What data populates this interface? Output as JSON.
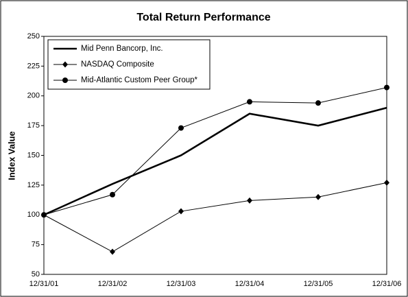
{
  "chart_data": {
    "type": "line",
    "title": "Total Return Performance",
    "y_label": "Index Value",
    "categories": [
      "12/31/01",
      "12/31/02",
      "12/31/03",
      "12/31/04",
      "12/31/05",
      "12/31/06"
    ],
    "series": [
      {
        "name": "Mid Penn Bancorp, Inc.",
        "color": "#000000",
        "marker": "none",
        "line_width": 2.6,
        "values": [
          100,
          126,
          150,
          185,
          175,
          190
        ]
      },
      {
        "name": "NASDAQ Composite",
        "color": "#000000",
        "marker": "diamond",
        "line_width": 1,
        "values": [
          100,
          69,
          103,
          112,
          115,
          127
        ]
      },
      {
        "name": "Mid-Atlantic Custom Peer Group*",
        "color": "#000000",
        "marker": "circle",
        "line_width": 1,
        "values": [
          100,
          117,
          173,
          195,
          194,
          207
        ]
      }
    ],
    "ylim": [
      50,
      250
    ],
    "yticks": [
      50,
      75,
      100,
      125,
      150,
      175,
      200,
      225,
      250
    ],
    "grid": false,
    "legend": "top-left"
  }
}
